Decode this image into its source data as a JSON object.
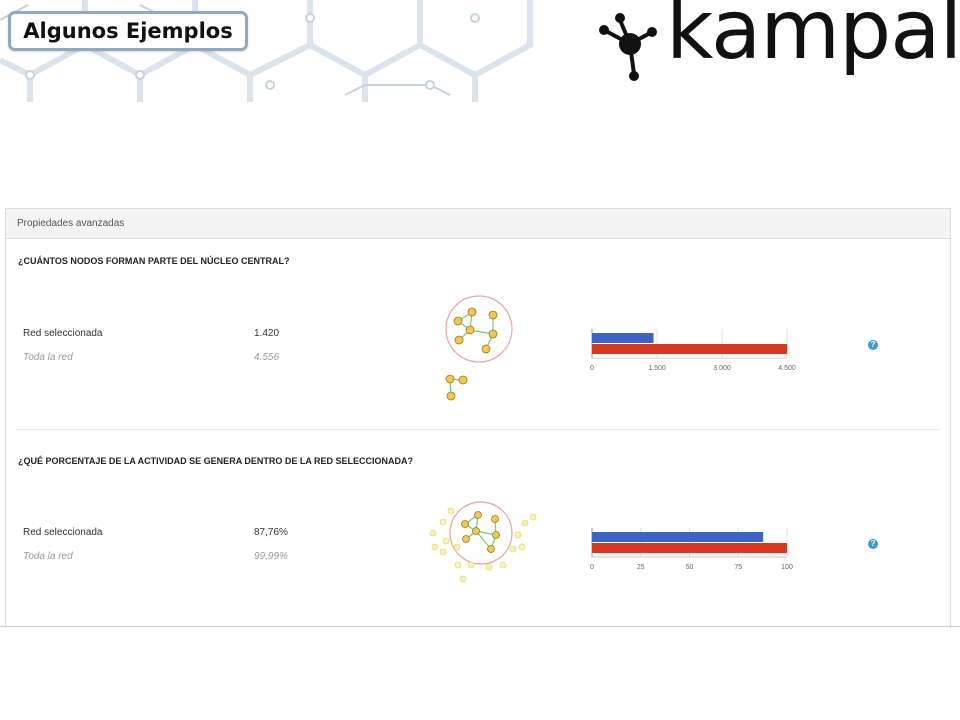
{
  "header": {
    "title": "Algunos Ejemplos",
    "logo_text": "kampal",
    "colors": {
      "hexagon_lines": "#dbe4ee",
      "title_border": "#8ea9c4"
    }
  },
  "panel": {
    "title": "Propiedades avanzadas",
    "help_icon_label": "?",
    "sections": [
      {
        "question": "¿CUÁNTOS NODOS FORMAN PARTE DEL NÚCLEO CENTRAL?",
        "rows": [
          {
            "label": "Red seleccionada",
            "value": "1.420"
          },
          {
            "label": "Toda la red",
            "value": "4.556"
          }
        ],
        "chart_data": {
          "type": "bar",
          "orientation": "horizontal",
          "categories": [
            "Red seleccionada",
            "Toda la red"
          ],
          "values": [
            1420,
            4556
          ],
          "colors": [
            "#3d63c9",
            "#d9381e"
          ],
          "xlim": [
            0,
            4500
          ],
          "ticks": [
            "0",
            "1.500",
            "3.000",
            "4.500"
          ],
          "tick_values": [
            0,
            1500,
            3000,
            4500
          ]
        }
      },
      {
        "question": "¿QUÉ PORCENTAJE DE LA ACTIVIDAD SE GENERA DENTRO DE LA RED SELECCIONADA?",
        "rows": [
          {
            "label": "Red seleccionada",
            "value": "87,76%"
          },
          {
            "label": "Toda la red",
            "value": "99,99%"
          }
        ],
        "chart_data": {
          "type": "bar",
          "orientation": "horizontal",
          "categories": [
            "Red seleccionada",
            "Toda la red"
          ],
          "values": [
            87.76,
            99.99
          ],
          "colors": [
            "#3d63c9",
            "#d9381e"
          ],
          "xlim": [
            0,
            100
          ],
          "ticks": [
            "0",
            "25",
            "50",
            "75",
            "100"
          ],
          "tick_values": [
            0,
            25,
            50,
            75,
            100
          ]
        }
      }
    ]
  }
}
